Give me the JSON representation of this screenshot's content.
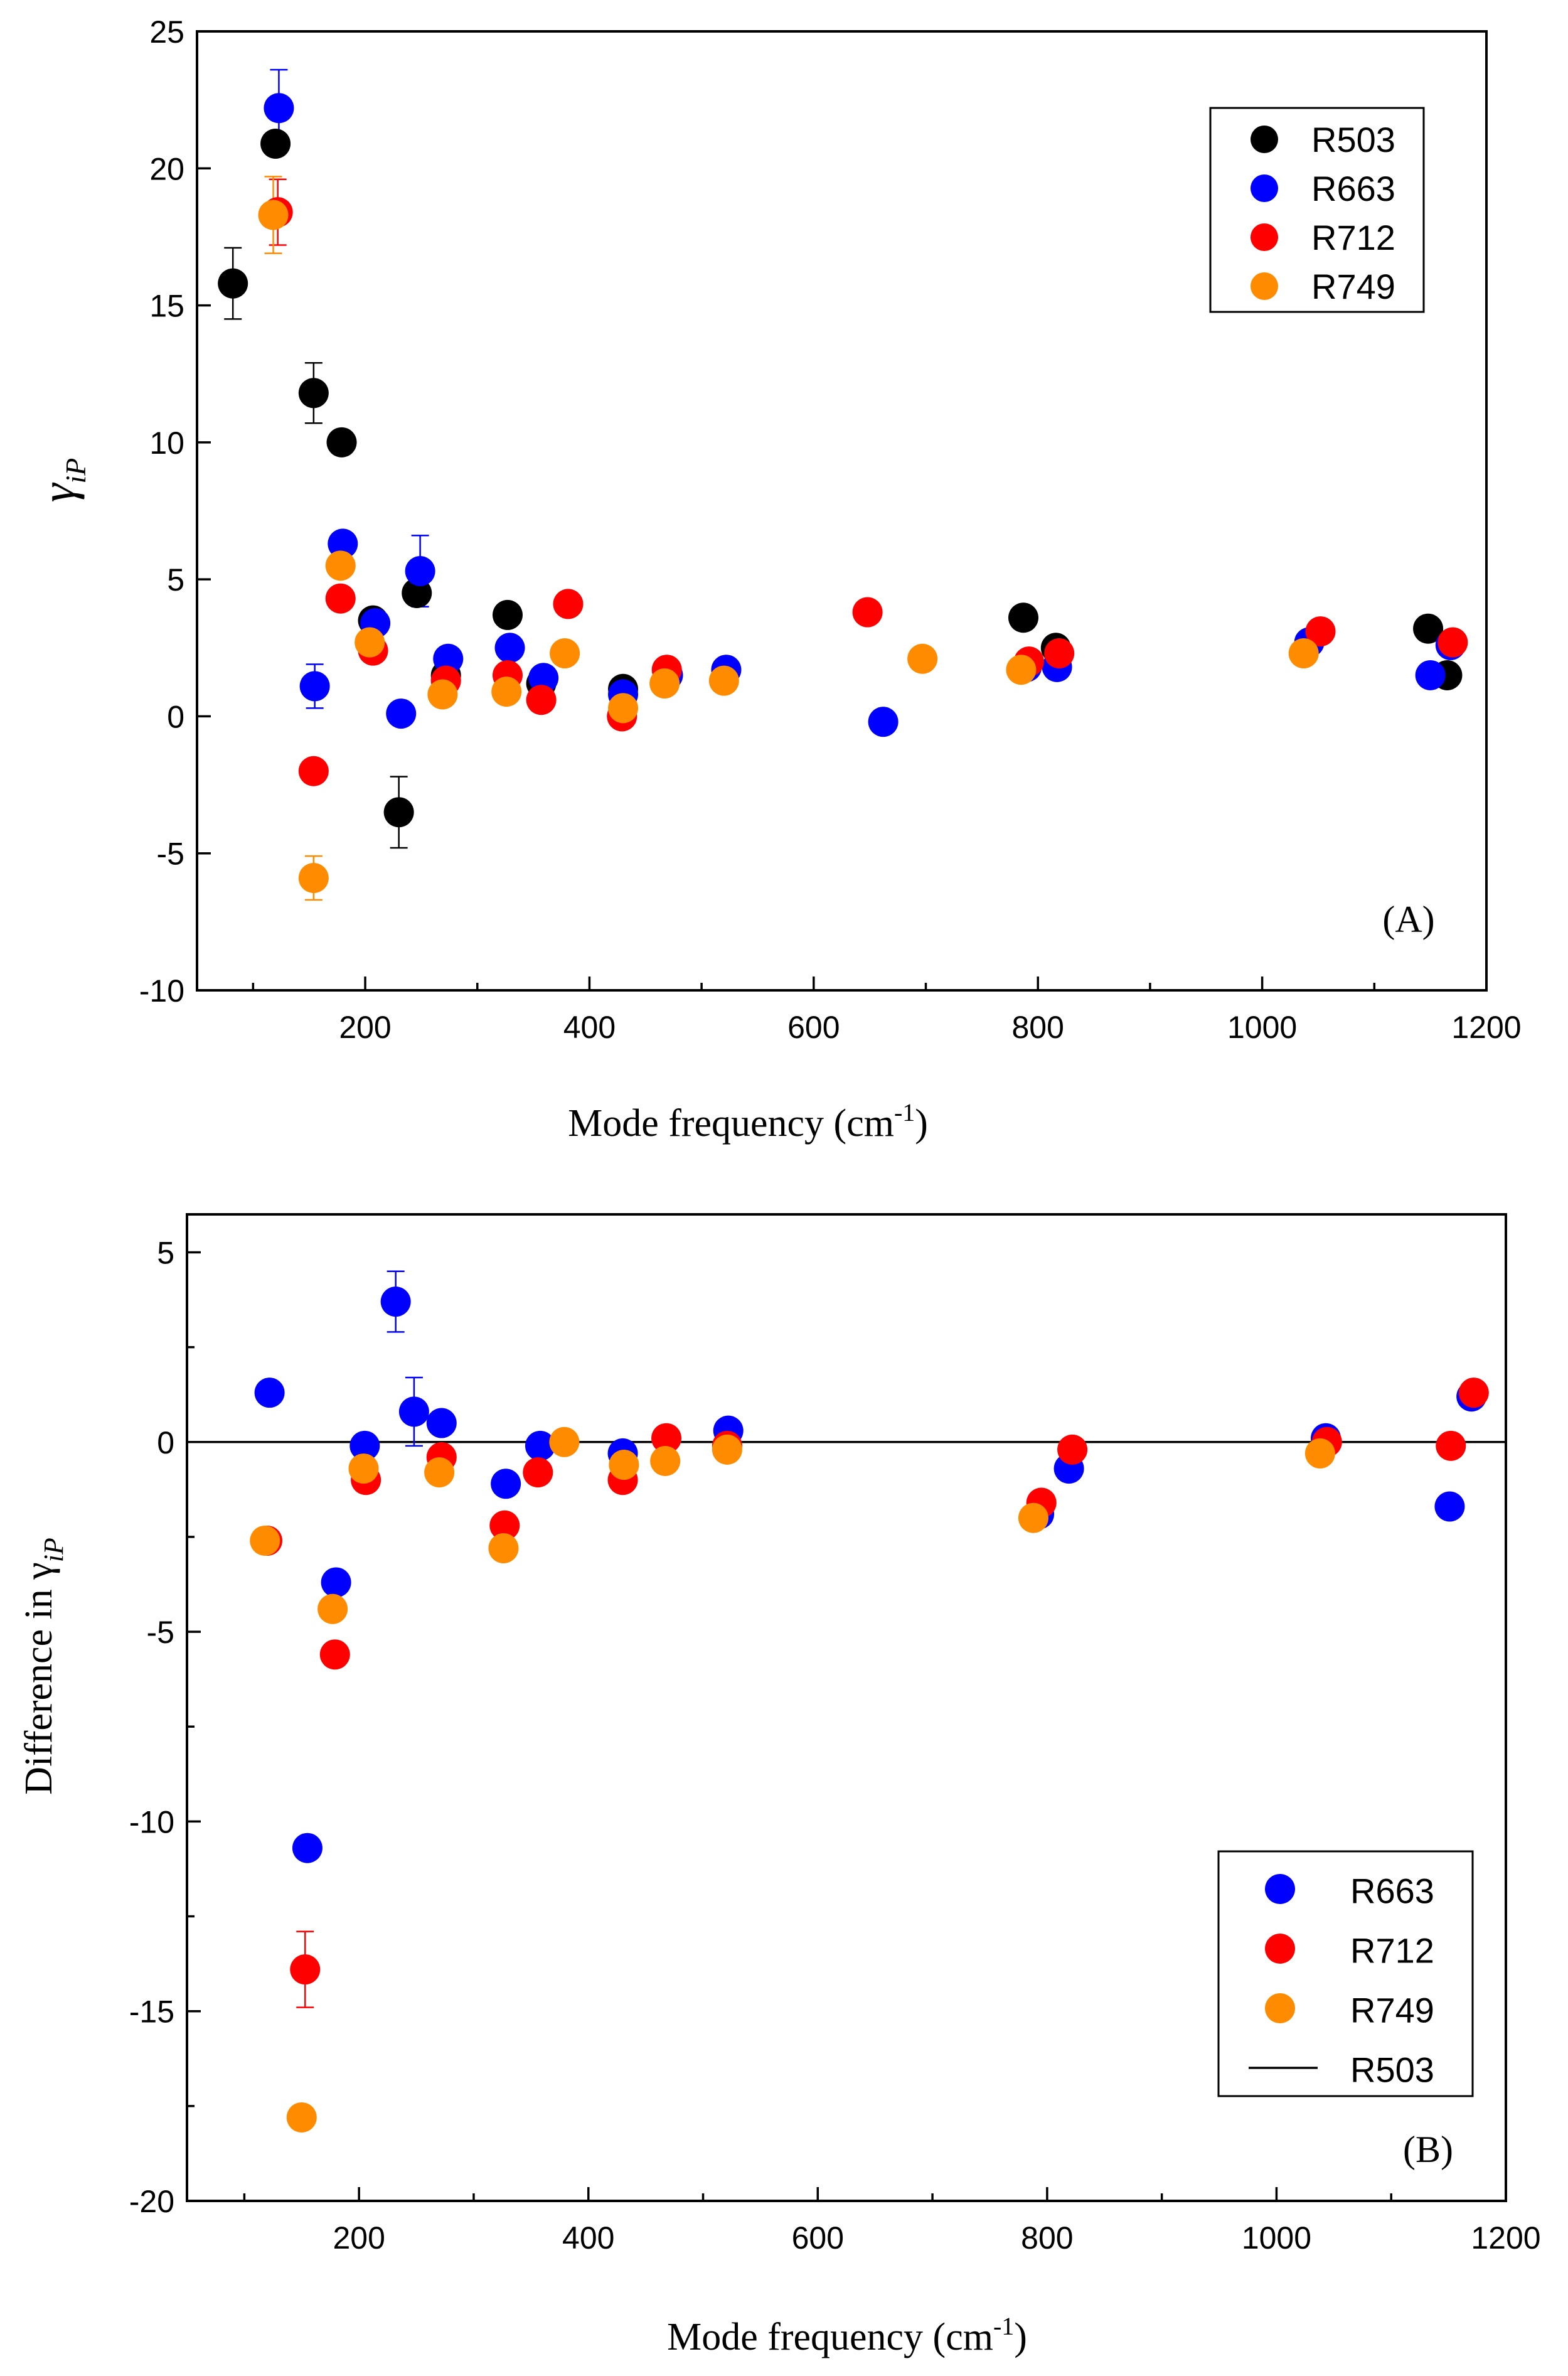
{
  "chart_data": [
    {
      "type": "scatter",
      "panel_label": "(A)",
      "xlabel": "Mode frequency (cm",
      "xlabel_sup": "-1",
      "xlabel_end": ")",
      "ylabel": "γ",
      "ylabel_sub": "iP",
      "xlim": [
        50,
        1200
      ],
      "ylim": [
        -10,
        25
      ],
      "x_ticks": [
        200,
        400,
        600,
        800,
        1000,
        1200
      ],
      "y_ticks": [
        -10,
        -5,
        0,
        5,
        10,
        15,
        20,
        25
      ],
      "legend_position": "top-right",
      "series": [
        {
          "name": "R503",
          "color": "#000000",
          "points": [
            {
              "x": 82,
              "y": 15.8,
              "err": 1.3
            },
            {
              "x": 120,
              "y": 20.9,
              "err": 0
            },
            {
              "x": 154,
              "y": 11.8,
              "err": 1.1
            },
            {
              "x": 179,
              "y": 10.0,
              "err": 0
            },
            {
              "x": 207,
              "y": 3.5,
              "err": 0
            },
            {
              "x": 230,
              "y": -3.5,
              "err": 1.3
            },
            {
              "x": 246,
              "y": 4.5,
              "err": 0
            },
            {
              "x": 272,
              "y": 1.5,
              "err": 0
            },
            {
              "x": 327,
              "y": 3.7,
              "err": 0
            },
            {
              "x": 357,
              "y": 1.2,
              "err": 0
            },
            {
              "x": 430,
              "y": 1.0,
              "err": 0
            },
            {
              "x": 787,
              "y": 3.6,
              "err": 0
            },
            {
              "x": 816,
              "y": 2.5,
              "err": 0
            },
            {
              "x": 1148,
              "y": 3.2,
              "err": 0
            },
            {
              "x": 1165,
              "y": 1.5,
              "err": 0
            }
          ]
        },
        {
          "name": "R663",
          "color": "#0000ff",
          "points": [
            {
              "x": 123,
              "y": 22.2,
              "err": 1.4
            },
            {
              "x": 155,
              "y": 1.1,
              "err": 0.8
            },
            {
              "x": 180,
              "y": 6.3,
              "err": 0
            },
            {
              "x": 209,
              "y": 3.4,
              "err": 0
            },
            {
              "x": 232,
              "y": 0.1,
              "err": 0
            },
            {
              "x": 249,
              "y": 5.3,
              "err": 1.3
            },
            {
              "x": 274,
              "y": 2.1,
              "err": 0
            },
            {
              "x": 329,
              "y": 2.5,
              "err": 0
            },
            {
              "x": 359,
              "y": 1.4,
              "err": 0
            },
            {
              "x": 430,
              "y": 0.8,
              "err": 0
            },
            {
              "x": 470,
              "y": 1.5,
              "err": 0
            },
            {
              "x": 522,
              "y": 1.7,
              "err": 0
            },
            {
              "x": 662,
              "y": -0.2,
              "err": 0
            },
            {
              "x": 790,
              "y": 1.8,
              "err": 0
            },
            {
              "x": 817,
              "y": 1.8,
              "err": 0
            },
            {
              "x": 1042,
              "y": 2.7,
              "err": 0
            },
            {
              "x": 1150,
              "y": 1.5,
              "err": 0
            },
            {
              "x": 1168,
              "y": 2.6,
              "err": 0
            }
          ]
        },
        {
          "name": "R712",
          "color": "#ff0000",
          "points": [
            {
              "x": 122,
              "y": 18.4,
              "err": 1.2
            },
            {
              "x": 154,
              "y": -2.0,
              "err": 0
            },
            {
              "x": 178,
              "y": 4.3,
              "err": 0
            },
            {
              "x": 207,
              "y": 2.4,
              "err": 0
            },
            {
              "x": 272,
              "y": 1.3,
              "err": 0
            },
            {
              "x": 327,
              "y": 1.5,
              "err": 0
            },
            {
              "x": 357,
              "y": 0.6,
              "err": 0
            },
            {
              "x": 381,
              "y": 4.1,
              "err": 0
            },
            {
              "x": 429,
              "y": 0.0,
              "err": 0
            },
            {
              "x": 469,
              "y": 1.7,
              "err": 0
            },
            {
              "x": 648,
              "y": 3.8,
              "err": 0
            },
            {
              "x": 792,
              "y": 2.0,
              "err": 0
            },
            {
              "x": 819,
              "y": 2.3,
              "err": 0
            },
            {
              "x": 1052,
              "y": 3.1,
              "err": 0
            },
            {
              "x": 1170,
              "y": 2.7,
              "err": 0
            }
          ]
        },
        {
          "name": "R749",
          "color": "#ff8c00",
          "points": [
            {
              "x": 118,
              "y": 18.3,
              "err": 1.4
            },
            {
              "x": 154,
              "y": -5.9,
              "err": 0.8
            },
            {
              "x": 178,
              "y": 5.5,
              "err": 0
            },
            {
              "x": 204,
              "y": 2.7,
              "err": 0
            },
            {
              "x": 269,
              "y": 0.8,
              "err": 0
            },
            {
              "x": 326,
              "y": 0.9,
              "err": 0
            },
            {
              "x": 378,
              "y": 2.3,
              "err": 0
            },
            {
              "x": 430,
              "y": 0.3,
              "err": 0
            },
            {
              "x": 467,
              "y": 1.2,
              "err": 0
            },
            {
              "x": 520,
              "y": 1.3,
              "err": 0
            },
            {
              "x": 697,
              "y": 2.1,
              "err": 0
            },
            {
              "x": 785,
              "y": 1.7,
              "err": 0
            },
            {
              "x": 1037,
              "y": 2.3,
              "err": 0
            }
          ]
        }
      ]
    },
    {
      "type": "scatter",
      "panel_label": "(B)",
      "xlabel": "Mode frequency (cm",
      "xlabel_sup": "-1",
      "xlabel_end": ")",
      "ylabel": "Difference in  γ",
      "ylabel_sub": "iP",
      "xlim": [
        50,
        1200
      ],
      "ylim": [
        -20,
        6
      ],
      "x_ticks": [
        200,
        400,
        600,
        800,
        1000,
        1200
      ],
      "y_ticks": [
        -20,
        -15,
        -10,
        -5,
        0,
        5
      ],
      "legend_position": "bottom-right",
      "reference_line": {
        "name": "R503",
        "y": 0,
        "color": "#000000"
      },
      "series": [
        {
          "name": "R663",
          "color": "#0000ff",
          "points": [
            {
              "x": 122,
              "y": 1.3,
              "err": 0
            },
            {
              "x": 155,
              "y": -10.7,
              "err": 0
            },
            {
              "x": 180,
              "y": -3.7,
              "err": 0
            },
            {
              "x": 205,
              "y": -0.1,
              "err": 0
            },
            {
              "x": 232,
              "y": 3.7,
              "err": 0.8
            },
            {
              "x": 248,
              "y": 0.8,
              "err": 0.9
            },
            {
              "x": 272,
              "y": 0.5,
              "err": 0
            },
            {
              "x": 328,
              "y": -1.1,
              "err": 0
            },
            {
              "x": 358,
              "y": -0.1,
              "err": 0
            },
            {
              "x": 430,
              "y": -0.3,
              "err": 0
            },
            {
              "x": 522,
              "y": 0.3,
              "err": 0
            },
            {
              "x": 793,
              "y": -1.9,
              "err": 0
            },
            {
              "x": 819,
              "y": -0.7,
              "err": 0
            },
            {
              "x": 1043,
              "y": 0.1,
              "err": 0
            },
            {
              "x": 1151,
              "y": -1.7,
              "err": 0
            },
            {
              "x": 1170,
              "y": 1.2,
              "err": 0
            }
          ]
        },
        {
          "name": "R712",
          "color": "#ff0000",
          "points": [
            {
              "x": 120,
              "y": -2.6,
              "err": 0
            },
            {
              "x": 153,
              "y": -13.9,
              "err": 1.0
            },
            {
              "x": 179,
              "y": -5.6,
              "err": 0
            },
            {
              "x": 206,
              "y": -1.0,
              "err": 0
            },
            {
              "x": 272,
              "y": -0.4,
              "err": 0
            },
            {
              "x": 327,
              "y": -2.2,
              "err": 0
            },
            {
              "x": 356,
              "y": -0.8,
              "err": 0
            },
            {
              "x": 430,
              "y": -1.0,
              "err": 0
            },
            {
              "x": 468,
              "y": 0.1,
              "err": 0
            },
            {
              "x": 521,
              "y": -0.1,
              "err": 0
            },
            {
              "x": 795,
              "y": -1.6,
              "err": 0
            },
            {
              "x": 822,
              "y": -0.2,
              "err": 0
            },
            {
              "x": 1044,
              "y": 0.0,
              "err": 0
            },
            {
              "x": 1152,
              "y": -0.1,
              "err": 0
            },
            {
              "x": 1172,
              "y": 1.3,
              "err": 0
            }
          ]
        },
        {
          "name": "R749",
          "color": "#ff8c00",
          "points": [
            {
              "x": 118,
              "y": -2.6,
              "err": 0
            },
            {
              "x": 150,
              "y": -17.8,
              "err": 0
            },
            {
              "x": 177,
              "y": -4.4,
              "err": 0
            },
            {
              "x": 204,
              "y": -0.7,
              "err": 0
            },
            {
              "x": 270,
              "y": -0.8,
              "err": 0
            },
            {
              "x": 326,
              "y": -2.8,
              "err": 0
            },
            {
              "x": 379,
              "y": 0.0,
              "err": 0
            },
            {
              "x": 431,
              "y": -0.6,
              "err": 0
            },
            {
              "x": 467,
              "y": -0.5,
              "err": 0
            },
            {
              "x": 521,
              "y": -0.2,
              "err": 0
            },
            {
              "x": 788,
              "y": -2.0,
              "err": 0
            },
            {
              "x": 1038,
              "y": -0.3,
              "err": 0
            }
          ]
        }
      ]
    }
  ]
}
